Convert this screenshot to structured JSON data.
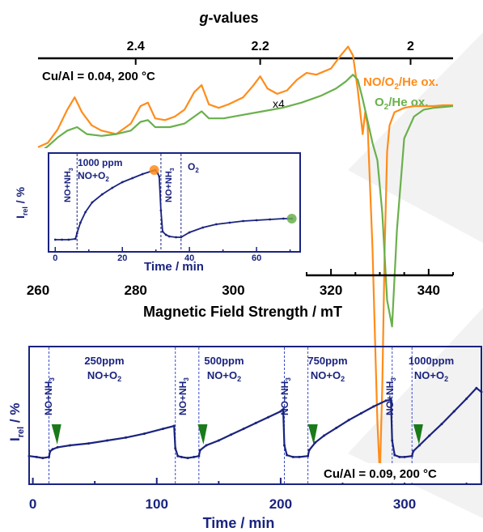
{
  "chart_data": [
    {
      "type": "line",
      "panel": "EPR spectra (top)",
      "title": "",
      "top_axis_label_italic": "g",
      "top_axis_label_rest": "-values",
      "top_ticks": [
        {
          "label": "2.4",
          "field": 280.0
        },
        {
          "label": "2.2",
          "field": 305.5
        },
        {
          "label": "2",
          "field": 336.3
        }
      ],
      "xlabel": "Magnetic Field Strength / mT",
      "xlim": [
        260,
        345
      ],
      "xticks": [
        "260",
        "280",
        "300",
        "320",
        "340"
      ],
      "annotation": "Cu/Al = 0.04, 200 °C",
      "scale_label": "x4",
      "series": [
        {
          "name": "NO/O2/He ox.",
          "color": "#ff8c1a",
          "x": [
            260,
            262,
            264,
            266,
            267.5,
            269,
            271,
            273,
            276,
            279,
            281,
            282.5,
            284,
            286,
            288,
            290,
            292,
            293.5,
            295,
            297,
            299,
            302,
            304,
            305.5,
            307,
            309,
            311,
            313,
            315,
            317,
            320,
            322,
            323.5,
            324.5,
            325.5,
            326.5,
            327,
            327.5,
            328,
            328.5,
            329,
            329.5,
            330,
            330.5,
            331,
            331.5,
            332,
            333,
            335,
            337,
            339,
            341,
            343,
            345
          ],
          "y": [
            0.15,
            0.2,
            0.35,
            0.58,
            0.72,
            0.55,
            0.4,
            0.34,
            0.3,
            0.42,
            0.62,
            0.66,
            0.48,
            0.46,
            0.5,
            0.58,
            0.78,
            0.86,
            0.64,
            0.6,
            0.64,
            0.72,
            0.85,
            0.96,
            0.82,
            0.76,
            0.8,
            0.92,
            1.0,
            0.98,
            1.05,
            1.2,
            1.3,
            1.2,
            0.8,
            0.3,
            0.55,
            0.4,
            -0.3,
            -1.0,
            -2.0,
            -3.0,
            -3.6,
            -2.6,
            -1.0,
            0.1,
            0.4,
            0.55,
            0.6,
            0.62,
            0.62,
            0.62,
            0.63,
            0.63
          ]
        },
        {
          "name": "O2/He ox.",
          "color": "#6ab04c",
          "x": [
            260,
            262,
            264,
            266,
            268,
            270,
            273,
            276,
            279,
            281,
            282.5,
            284,
            287,
            290,
            292,
            293.5,
            295,
            298,
            302,
            306,
            310,
            314,
            318,
            321,
            323,
            324.5,
            325.5,
            326.5,
            327.5,
            328.5,
            329.5,
            330.5,
            331.5,
            332.5,
            333.5,
            335,
            337,
            339,
            341,
            343,
            345
          ],
          "y": [
            0.08,
            0.16,
            0.26,
            0.34,
            0.38,
            0.3,
            0.28,
            0.3,
            0.34,
            0.44,
            0.46,
            0.38,
            0.38,
            0.42,
            0.5,
            0.56,
            0.48,
            0.48,
            0.52,
            0.56,
            0.6,
            0.66,
            0.74,
            0.82,
            0.9,
            0.98,
            0.92,
            0.7,
            0.45,
            0.2,
            0.0,
            -0.6,
            -1.6,
            -1.9,
            -0.8,
            0.25,
            0.5,
            0.58,
            0.6,
            0.61,
            0.62
          ]
        }
      ]
    },
    {
      "type": "line",
      "panel": "inset",
      "title": "",
      "xlabel": "Time / min",
      "ylabel_main": "I",
      "ylabel_sub": "rel",
      "ylabel_unit": " / %",
      "xlim": [
        -2,
        73
      ],
      "xticks": [
        "0",
        "20",
        "40",
        "60"
      ],
      "segment_labels": [
        "NO+NH3",
        "1000 ppm",
        "NO+O2",
        "NO+NH3",
        "O2"
      ],
      "markers": [
        {
          "x": 29.5,
          "y": 0.9,
          "color": "#ff8c1a"
        },
        {
          "x": 70.5,
          "y": 0.3,
          "color": "#6ab04c"
        }
      ],
      "dashed_x": [
        6.5,
        31.5,
        37.5
      ],
      "series": [
        {
          "name": "",
          "color": "#1a237e",
          "x": [
            0,
            2,
            4,
            6,
            6.5,
            7.5,
            9,
            11,
            14,
            17,
            20,
            23,
            26,
            29,
            29.8,
            30.5,
            31,
            31.5,
            32,
            33,
            34,
            36,
            37.5,
            40,
            44,
            48,
            52,
            56,
            60,
            64,
            68,
            70.5
          ],
          "y": [
            0.04,
            0.04,
            0.04,
            0.05,
            0.12,
            0.25,
            0.38,
            0.5,
            0.6,
            0.68,
            0.75,
            0.8,
            0.85,
            0.89,
            0.9,
            0.86,
            0.82,
            0.4,
            0.14,
            0.1,
            0.08,
            0.07,
            0.07,
            0.13,
            0.19,
            0.23,
            0.25,
            0.27,
            0.28,
            0.29,
            0.3,
            0.3
          ]
        }
      ]
    },
    {
      "type": "line",
      "panel": "bottom",
      "title": "",
      "xlabel": "Time / min",
      "ylabel_main": "I",
      "ylabel_sub": "rel",
      "ylabel_unit": " / %",
      "xlim": [
        -3,
        362
      ],
      "xticks": [
        "0",
        "100",
        "200",
        "300"
      ],
      "annotation": "Cu/Al = 0.09, 200 °C",
      "segments": [
        {
          "nh3_label": "NO+NH3",
          "conc": "250ppm",
          "gas": "NO+O2"
        },
        {
          "nh3_label": "NO+NH3",
          "conc": "500ppm",
          "gas": "NO+O2"
        },
        {
          "nh3_label": "NO+NH3",
          "conc": "750ppm",
          "gas": "NO+O2"
        },
        {
          "nh3_label": "NO+NH3",
          "conc": "1000ppm",
          "gas": "NO+O2"
        }
      ],
      "dashed_x": [
        13,
        115,
        134,
        203,
        222,
        290,
        306
      ],
      "triangles_x": [
        19,
        137,
        226,
        311
      ],
      "series": [
        {
          "name": "",
          "color": "#1a237e",
          "x": [
            -3,
            3,
            8,
            13,
            14,
            16,
            20,
            30,
            45,
            60,
            75,
            90,
            105,
            114,
            115,
            117,
            120,
            125,
            130,
            134,
            135,
            140,
            150,
            160,
            170,
            180,
            190,
            200,
            202,
            203,
            205,
            210,
            215,
            222,
            223,
            228,
            235,
            245,
            255,
            265,
            275,
            285,
            289,
            290,
            292,
            296,
            300,
            306,
            307,
            312,
            320,
            330,
            340,
            350,
            358,
            362
          ],
          "y": [
            0.04,
            0.03,
            0.02,
            0.03,
            0.09,
            0.11,
            0.13,
            0.15,
            0.17,
            0.2,
            0.23,
            0.27,
            0.32,
            0.35,
            0.12,
            0.04,
            0.03,
            0.02,
            0.03,
            0.04,
            0.1,
            0.15,
            0.2,
            0.26,
            0.32,
            0.38,
            0.44,
            0.5,
            0.52,
            0.15,
            0.05,
            0.03,
            0.03,
            0.04,
            0.1,
            0.18,
            0.25,
            0.33,
            0.41,
            0.48,
            0.55,
            0.61,
            0.62,
            0.2,
            0.05,
            0.03,
            0.03,
            0.04,
            0.09,
            0.15,
            0.25,
            0.37,
            0.5,
            0.63,
            0.74,
            0.7
          ]
        }
      ]
    }
  ]
}
